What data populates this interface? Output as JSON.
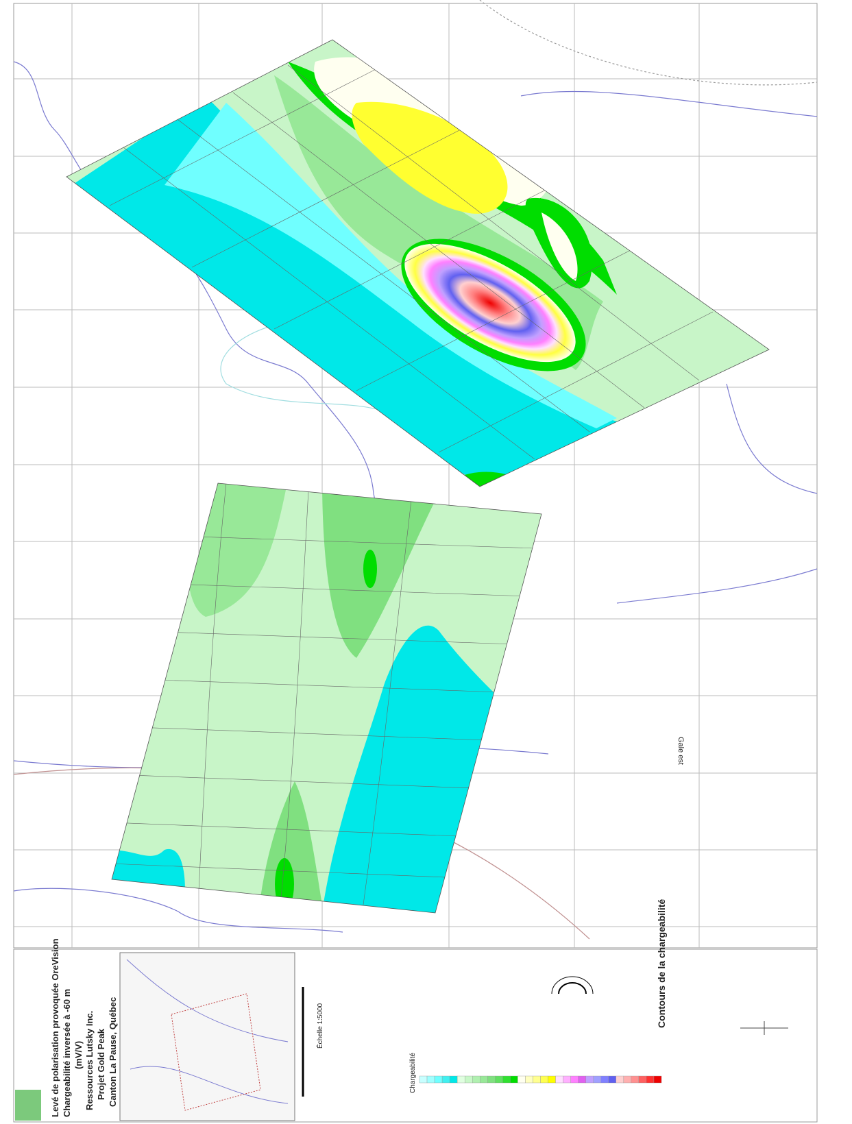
{
  "map": {
    "title_block": {
      "company": "Ressources Lutsky Inc.",
      "project": "Projet Gold Peak",
      "location": "Canton La Pause, Québec",
      "survey": "Levé de polarisation provoquée OreVision",
      "product": "Chargeabilité inversée à -60 m",
      "units": "(mV/V)"
    },
    "scale_label": "Échelle 1:5000",
    "legend_title": "Contours de la chargeabilité",
    "colorbar_label": "Chargeabilité",
    "area_label": "Gale est",
    "colorbar_colors": [
      "#c8ffff",
      "#a0ffff",
      "#70ffff",
      "#40f0f0",
      "#00e8e8",
      "#e0ffe0",
      "#c8f8c8",
      "#b0f0b0",
      "#98e898",
      "#80e080",
      "#60e060",
      "#30e030",
      "#00dd00",
      "#fffff0",
      "#ffffc0",
      "#ffff90",
      "#ffff50",
      "#ffff00",
      "#ffe0ff",
      "#ffb0ff",
      "#ff80ff",
      "#e060f0",
      "#c0a0ff",
      "#a0a0ff",
      "#8080ff",
      "#6060f0",
      "#ffd0d0",
      "#ffb0b0",
      "#ff9090",
      "#ff6060",
      "#ff3030",
      "#ee0000"
    ]
  }
}
